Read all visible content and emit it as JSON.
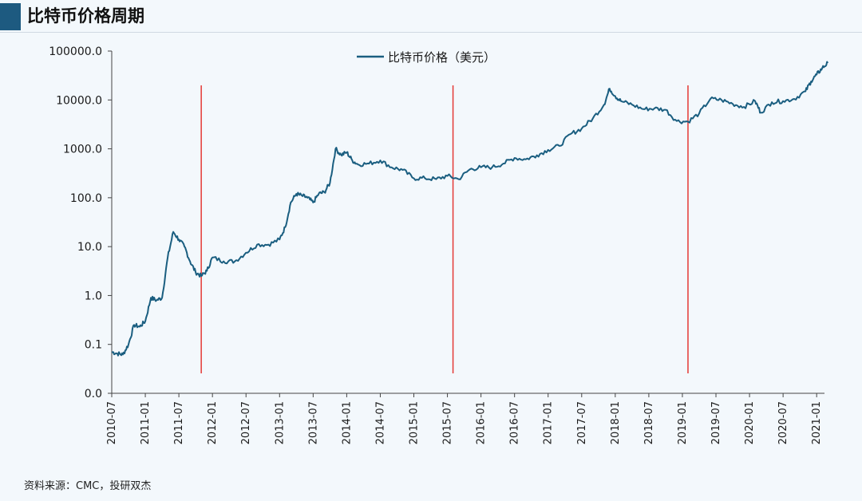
{
  "page": {
    "title": "比特币价格周期",
    "source": "资料来源：CMC，投研双杰",
    "accent_color": "#1d5a80",
    "line_color": "#1a5e80",
    "marker_color": "#e53935"
  },
  "chart_data": {
    "type": "line",
    "title": "",
    "xlabel": "",
    "ylabel": "",
    "yscale": "log",
    "ylim": [
      0.01,
      100000
    ],
    "y_ticks": [
      0.01,
      0.1,
      1,
      10,
      100,
      1000,
      10000,
      100000
    ],
    "y_tick_labels": [
      "0.0",
      "0.1",
      "1.0",
      "10.0",
      "100.0",
      "1000.0",
      "10000.0",
      "100000.0"
    ],
    "x_range": [
      "2010-07",
      "2021-03"
    ],
    "x_tick_labels": [
      "2010-07",
      "2011-01",
      "2011-07",
      "2012-01",
      "2012-07",
      "2013-01",
      "2013-07",
      "2014-01",
      "2014-07",
      "2015-01",
      "2015-07",
      "2016-01",
      "2016-07",
      "2017-01",
      "2017-07",
      "2018-01",
      "2018-07",
      "2019-01",
      "2019-07",
      "2020-01",
      "2020-07",
      "2021-01"
    ],
    "legend": {
      "position": "top-center"
    },
    "grid": false,
    "series": [
      {
        "name": "比特币价格（美元）",
        "x": [
          "2010-07",
          "2010-08",
          "2010-09",
          "2010-10",
          "2010-11",
          "2010-12",
          "2011-01",
          "2011-02",
          "2011-03",
          "2011-04",
          "2011-05",
          "2011-06",
          "2011-07",
          "2011-08",
          "2011-09",
          "2011-10",
          "2011-11",
          "2011-12",
          "2012-01",
          "2012-03",
          "2012-05",
          "2012-07",
          "2012-09",
          "2012-11",
          "2013-01",
          "2013-02",
          "2013-03",
          "2013-04",
          "2013-05",
          "2013-06",
          "2013-07",
          "2013-08",
          "2013-09",
          "2013-10",
          "2013-11",
          "2013-12",
          "2014-01",
          "2014-02",
          "2014-03",
          "2014-05",
          "2014-07",
          "2014-09",
          "2014-11",
          "2015-01",
          "2015-03",
          "2015-05",
          "2015-07",
          "2015-09",
          "2015-11",
          "2016-01",
          "2016-03",
          "2016-05",
          "2016-07",
          "2016-09",
          "2016-11",
          "2017-01",
          "2017-03",
          "2017-05",
          "2017-07",
          "2017-09",
          "2017-11",
          "2017-12",
          "2018-01",
          "2018-02",
          "2018-04",
          "2018-06",
          "2018-08",
          "2018-10",
          "2018-12",
          "2019-02",
          "2019-04",
          "2019-06",
          "2019-08",
          "2019-10",
          "2019-12",
          "2020-02",
          "2020-03",
          "2020-05",
          "2020-07",
          "2020-09",
          "2020-11",
          "2020-12",
          "2021-01",
          "2021-02",
          "2021-03"
        ],
        "y": [
          0.07,
          0.065,
          0.062,
          0.1,
          0.25,
          0.23,
          0.3,
          0.9,
          0.8,
          0.9,
          6,
          20,
          14,
          10,
          5,
          3,
          2.5,
          3.2,
          6,
          5,
          5,
          7.5,
          11,
          11,
          14,
          25,
          80,
          120,
          110,
          100,
          80,
          120,
          130,
          200,
          1000,
          750,
          850,
          580,
          480,
          500,
          580,
          420,
          370,
          250,
          250,
          240,
          280,
          240,
          380,
          420,
          420,
          500,
          650,
          610,
          740,
          950,
          1150,
          2000,
          2600,
          4200,
          8000,
          17000,
          12000,
          9500,
          8000,
          6500,
          6700,
          6300,
          3700,
          3600,
          5300,
          10500,
          10000,
          8300,
          7200,
          9500,
          5500,
          9000,
          9500,
          10500,
          15000,
          24000,
          33000,
          45000,
          57000
        ]
      }
    ],
    "vertical_markers": [
      "2011-11",
      "2015-08",
      "2019-02"
    ]
  }
}
